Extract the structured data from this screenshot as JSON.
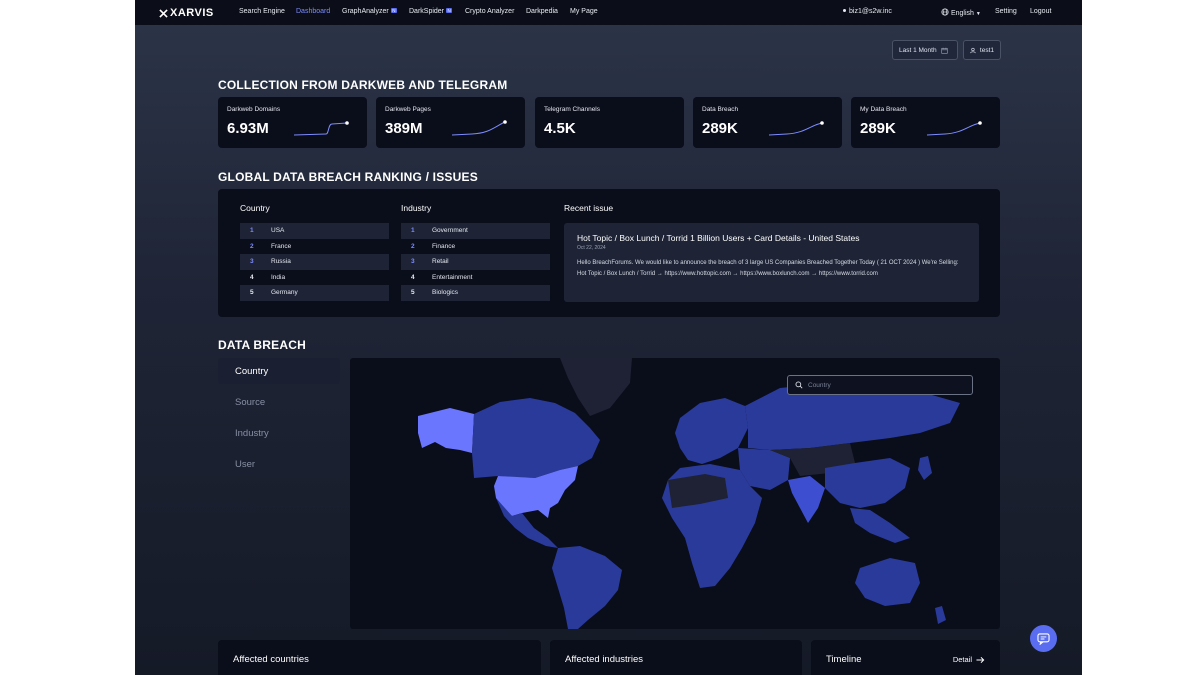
{
  "nav": {
    "logo": "XARVIS",
    "items": [
      {
        "label": "Search Engine",
        "badge": ""
      },
      {
        "label": "Dashboard",
        "badge": ""
      },
      {
        "label": "GraphAnalyzer",
        "badge": "N"
      },
      {
        "label": "DarkSpider",
        "badge": "N"
      },
      {
        "label": "Crypto Analyzer",
        "badge": ""
      },
      {
        "label": "Darkpedia",
        "badge": ""
      },
      {
        "label": "My Page",
        "badge": ""
      }
    ],
    "active": "Dashboard",
    "user_email": "biz1@s2w.inc",
    "language": "English",
    "setting": "Setting",
    "logout": "Logout"
  },
  "filters": {
    "period": "Last 1 Month",
    "user": "test1"
  },
  "collection": {
    "title": "COLLECTION FROM DARKWEB AND TELEGRAM",
    "cards": [
      {
        "label": "Darkweb Domains",
        "value": "6.93M",
        "sparkline": true
      },
      {
        "label": "Darkweb Pages",
        "value": "389M",
        "sparkline": true
      },
      {
        "label": "Telegram Channels",
        "value": "4.5K",
        "sparkline": false
      },
      {
        "label": "Data Breach",
        "value": "289K",
        "sparkline": true
      },
      {
        "label": "My Data Breach",
        "value": "289K",
        "sparkline": true
      }
    ]
  },
  "ranking": {
    "title": "GLOBAL DATA BREACH RANKING / ISSUES",
    "country_title": "Country",
    "industry_title": "Industry",
    "countries": [
      {
        "rank": "1",
        "name": "USA"
      },
      {
        "rank": "2",
        "name": "France"
      },
      {
        "rank": "3",
        "name": "Russia"
      },
      {
        "rank": "4",
        "name": "India"
      },
      {
        "rank": "5",
        "name": "Germany"
      }
    ],
    "industries": [
      {
        "rank": "1",
        "name": "Government"
      },
      {
        "rank": "2",
        "name": "Finance"
      },
      {
        "rank": "3",
        "name": "Retail"
      },
      {
        "rank": "4",
        "name": "Entertainment"
      },
      {
        "rank": "5",
        "name": "Biologics"
      }
    ],
    "recent_issue_title": "Recent issue",
    "issue": {
      "headline": "Hot Topic / Box Lunch / Torrid 1 Billion Users + Card Details - United States",
      "date": "Oct 22, 2024",
      "body": "Hello BreachForums. We would like to announce the breach of 3 large US Companies Breached Together Today ( 21 OCT 2024 ) We're Selling: Hot Topic / Box Lunch / Torrid → https://www.hottopic.com → https://www.boxlunch.com → https://www.torrid.com"
    }
  },
  "data_breach": {
    "title": "DATA BREACH",
    "tabs": [
      "Country",
      "Source",
      "Industry",
      "User"
    ],
    "active_tab": "Country",
    "search_placeholder": "Country",
    "colors": {
      "highlight": "#6b76ff",
      "base": "#2a3a9a",
      "muted": "#1e2234"
    }
  },
  "bottom": {
    "affected_countries": "Affected countries",
    "affected_industries": "Affected industries",
    "timeline": "Timeline",
    "detail": "Detail"
  }
}
